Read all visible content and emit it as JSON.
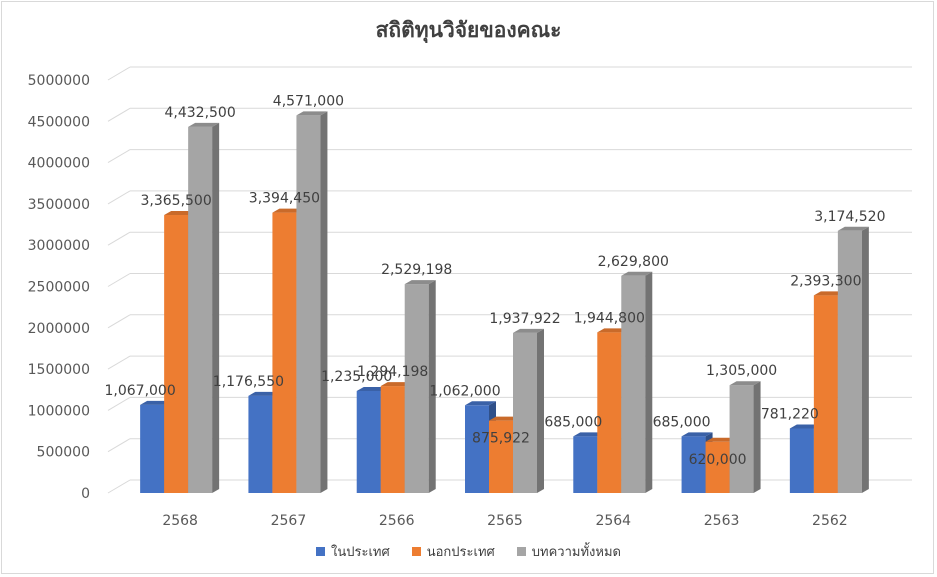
{
  "chart_data": {
    "type": "bar",
    "title": "สถิติทุนวิจัยของคณะ",
    "categories": [
      "2568",
      "2567",
      "2566",
      "2565",
      "2564",
      "2563",
      "2562"
    ],
    "series": [
      {
        "name": "ในประเทศ",
        "color": "#4472c4",
        "values": [
          1067000,
          1176550,
          1235000,
          1062000,
          685000,
          685000,
          781220
        ],
        "labels": [
          "1,067,000",
          "1,176,550",
          "1,235,000",
          "1,062,000",
          "685,000",
          "685,000",
          "781,220"
        ]
      },
      {
        "name": "นอกประเทศ",
        "color": "#ed7d31",
        "values": [
          3365500,
          3394450,
          1294198,
          875922,
          1944800,
          620000,
          2393300
        ],
        "labels": [
          "3,365,500",
          "3,394,450",
          "1,294,198",
          "875,922",
          "1,944,800",
          "620,000",
          "2,393,300"
        ]
      },
      {
        "name": "บทความทั้งหมด",
        "color": "#a5a5a5",
        "values": [
          4432500,
          4571000,
          2529198,
          1937922,
          2629800,
          1305000,
          3174520
        ],
        "labels": [
          "4,432,500",
          "4,571,000",
          "2,529,198",
          "1,937,922",
          "2,629,800",
          "1,305,000",
          "3,174,520"
        ]
      }
    ],
    "yticks": [
      "0",
      "500000",
      "1000000",
      "1500000",
      "2000000",
      "2500000",
      "3000000",
      "3500000",
      "4000000",
      "4500000",
      "5000000"
    ],
    "ylim": [
      0,
      5000000
    ],
    "grid": true,
    "legend_position": "bottom",
    "style": "3d-column"
  }
}
